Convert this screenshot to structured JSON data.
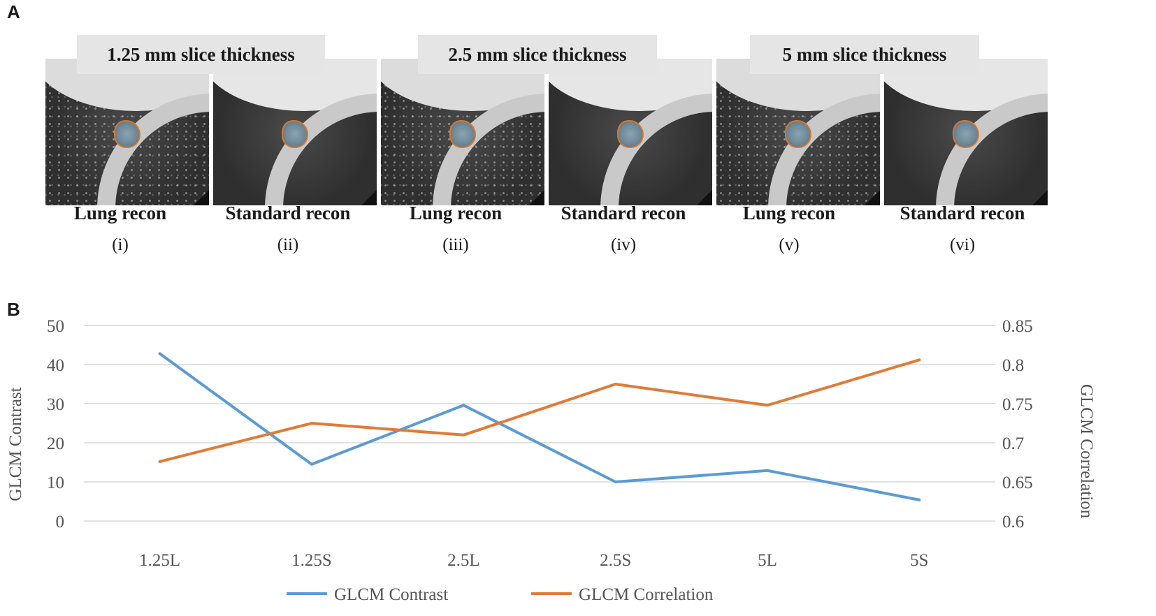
{
  "panel_a": {
    "label": "A",
    "groups": [
      {
        "title": "1.25 mm slice thickness"
      },
      {
        "title": "2.5 mm slice thickness"
      },
      {
        "title": "5 mm slice thickness"
      }
    ],
    "images": [
      {
        "recon": "Lung recon",
        "index": "(i)"
      },
      {
        "recon": "Standard recon",
        "index": "(ii)"
      },
      {
        "recon": "Lung recon",
        "index": "(iii)"
      },
      {
        "recon": "Standard recon",
        "index": "(iv)"
      },
      {
        "recon": "Lung recon",
        "index": "(v)"
      },
      {
        "recon": "Standard recon",
        "index": "(vi)"
      }
    ]
  },
  "panel_b": {
    "label": "B"
  },
  "chart_data": {
    "type": "line",
    "categories": [
      "1.25L",
      "1.25S",
      "2.5L",
      "2.5S",
      "5L",
      "5S"
    ],
    "series": [
      {
        "name": "GLCM Contrast",
        "axis": "left",
        "color": "#5b9bd5",
        "values": [
          42.8,
          14.5,
          29.6,
          10.0,
          12.9,
          5.4
        ]
      },
      {
        "name": "GLCM Correlation",
        "axis": "right",
        "color": "#e07b39",
        "values": [
          0.676,
          0.725,
          0.71,
          0.775,
          0.748,
          0.806
        ]
      }
    ],
    "ylabel": "GLCM Contrast",
    "y2label": "GLCM Correlation",
    "ylim": [
      0,
      50
    ],
    "yticks": [
      0,
      10,
      20,
      30,
      40,
      50
    ],
    "y2lim": [
      0.6,
      0.85
    ],
    "y2ticks": [
      "0.6",
      "0.65",
      "0.7",
      "0.75",
      "0.8",
      "0.85"
    ],
    "grid": true,
    "legend": "bottom"
  }
}
